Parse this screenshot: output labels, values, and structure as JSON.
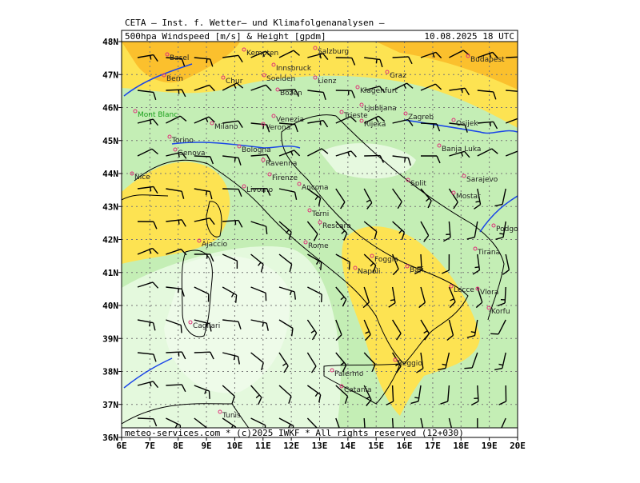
{
  "header": {
    "title": "CETA — Inst. f. Wetter— und Klimafolgenanalysen —",
    "product": "500hpa Windspeed [m/s] & Height [gpdm]",
    "valid": "10.08.2025 18 UTC"
  },
  "footer": "meteo-services.com * (c)2025 IWKF * All rights reserved (12+030)",
  "axes": {
    "lon_range": [
      6,
      20
    ],
    "lat_range": [
      36,
      48
    ],
    "lon_ticks": [
      {
        "value": 6,
        "label": "6E"
      },
      {
        "value": 7,
        "label": "7E"
      },
      {
        "value": 8,
        "label": "8E"
      },
      {
        "value": 9,
        "label": "9E"
      },
      {
        "value": 10,
        "label": "10E"
      },
      {
        "value": 11,
        "label": "11E"
      },
      {
        "value": 12,
        "label": "12E"
      },
      {
        "value": 13,
        "label": "13E"
      },
      {
        "value": 14,
        "label": "14E"
      },
      {
        "value": 15,
        "label": "15E"
      },
      {
        "value": 16,
        "label": "16E"
      },
      {
        "value": 17,
        "label": "17E"
      },
      {
        "value": 18,
        "label": "18E"
      },
      {
        "value": 19,
        "label": "19E"
      },
      {
        "value": 20,
        "label": "20E"
      }
    ],
    "lat_ticks": [
      {
        "value": 36,
        "label": "36N"
      },
      {
        "value": 37,
        "label": "37N"
      },
      {
        "value": 38,
        "label": "38N"
      },
      {
        "value": 39,
        "label": "39N"
      },
      {
        "value": 40,
        "label": "40N"
      },
      {
        "value": 41,
        "label": "41N"
      },
      {
        "value": 42,
        "label": "42N"
      },
      {
        "value": 43,
        "label": "43N"
      },
      {
        "value": 44,
        "label": "44N"
      },
      {
        "value": 45,
        "label": "45N"
      },
      {
        "value": 46,
        "label": "46N"
      },
      {
        "value": 47,
        "label": "47N"
      },
      {
        "value": 48,
        "label": "48N"
      }
    ]
  },
  "cities": [
    "Basel",
    "Bern",
    "Kempten",
    "Salzburg",
    "Innsbruck",
    "Budapest",
    "Graz",
    "Chur",
    "Soelden",
    "Lienz",
    "Bozen",
    "Klagenfurt",
    "Ljubljana",
    "Zagreb",
    "Milano",
    "Verona",
    "Venezia",
    "Trieste",
    "Rijeka",
    "Osijek",
    "Torino",
    "Genova",
    "Bologna",
    "Ravenna",
    "Banja Luka",
    "Firenze",
    "Ancona",
    "Livorno",
    "Nice",
    "Split",
    "Sarajevo",
    "Mostar",
    "Terni",
    "Rescara",
    "Podgorica",
    "Ajaccio",
    "Rome",
    "Foggia",
    "Bari",
    "Napoli",
    "Tirana",
    "Lecce",
    "Vlora",
    "Korfu",
    "Cagliari",
    "Reggio",
    "Palermo",
    "Catania",
    "Tunis",
    "Mont Blanc"
  ]
}
